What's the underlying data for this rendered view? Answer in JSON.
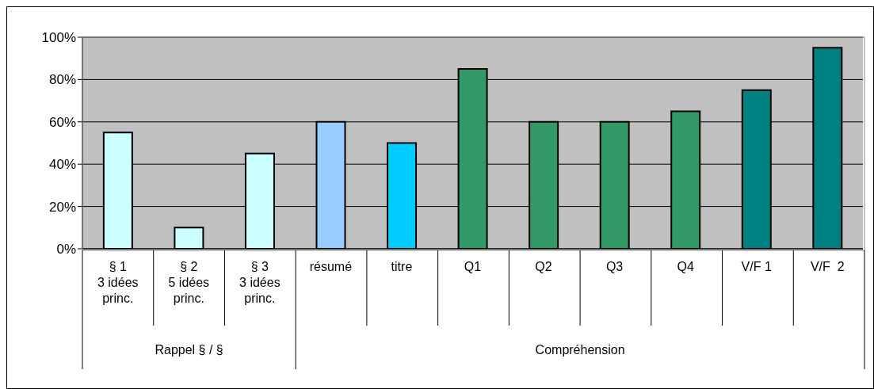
{
  "chart_data": {
    "type": "bar",
    "categories": [
      "§ 1\n3 idées\nprinc.",
      "§ 2\n5 idées\nprinc.",
      "§ 3\n3 idées\nprinc.",
      "résumé",
      "titre",
      "Q1",
      "Q2",
      "Q3",
      "Q4",
      "V/F 1",
      "V/F  2"
    ],
    "values": [
      55,
      10,
      45,
      60,
      50,
      85,
      60,
      60,
      65,
      75,
      95
    ],
    "colors": [
      "#ccffff",
      "#ccffff",
      "#ccffff",
      "#99ccff",
      "#00ccff",
      "#339966",
      "#339966",
      "#339966",
      "#339966",
      "#008080",
      "#008080"
    ],
    "ylim": [
      0,
      100
    ],
    "yticks": [
      {
        "value": 0,
        "label": "0%"
      },
      {
        "value": 20,
        "label": "20%"
      },
      {
        "value": 40,
        "label": "40%"
      },
      {
        "value": 60,
        "label": "60%"
      },
      {
        "value": 80,
        "label": "80%"
      },
      {
        "value": 100,
        "label": "100%"
      }
    ],
    "grid": "y",
    "legend": false,
    "annotations": [
      "Rappel § / §",
      "Compréhension"
    ]
  }
}
